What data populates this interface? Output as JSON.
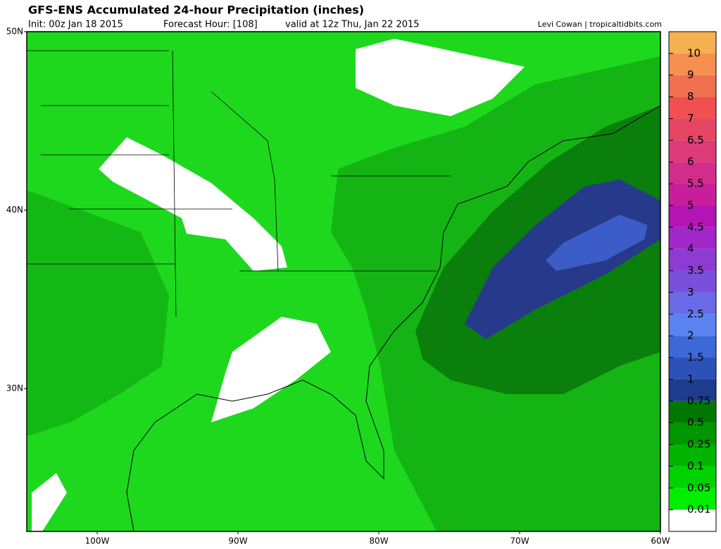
{
  "header": {
    "title": "GFS-ENS Accumulated 24-hour Precipitation (inches)",
    "init": "Init: 00z Jan 18 2015",
    "forecast_hour": "Forecast Hour: [108]",
    "valid": "valid at 12z Thu, Jan 22 2015",
    "credit": "Levi Cowan | tropicaltidbits.com"
  },
  "map": {
    "xlim": [
      -105,
      -60
    ],
    "ylim": [
      22,
      50
    ],
    "lat_labels": [
      {
        "value": 50,
        "label": "50N"
      },
      {
        "value": 40,
        "label": "40N"
      },
      {
        "value": 30,
        "label": "30N"
      }
    ],
    "lon_labels": [
      {
        "value": -100,
        "label": "100W"
      },
      {
        "value": -90,
        "label": "90W"
      },
      {
        "value": -80,
        "label": "80W"
      },
      {
        "value": -70,
        "label": "70W"
      },
      {
        "value": -60,
        "label": "60W"
      }
    ]
  },
  "colorbar": {
    "levels": [
      0.01,
      0.05,
      0.1,
      0.25,
      0.5,
      0.75,
      1,
      1.5,
      2,
      2.5,
      3,
      3.5,
      4,
      4.5,
      5,
      5.5,
      6,
      6.5,
      7,
      8,
      9,
      10
    ],
    "colors": [
      "#ffffff",
      "#00ee00",
      "#00d200",
      "#00b400",
      "#009600",
      "#007800",
      "#1e3c8c",
      "#2c52b8",
      "#3c68d8",
      "#5a82f0",
      "#6a6ae6",
      "#7850dc",
      "#8c3cd2",
      "#a028c8",
      "#b414b4",
      "#c81e9c",
      "#d22d8c",
      "#dc3c78",
      "#e64664",
      "#f05050",
      "#f07050",
      "#f59050",
      "#f5b050"
    ]
  }
}
